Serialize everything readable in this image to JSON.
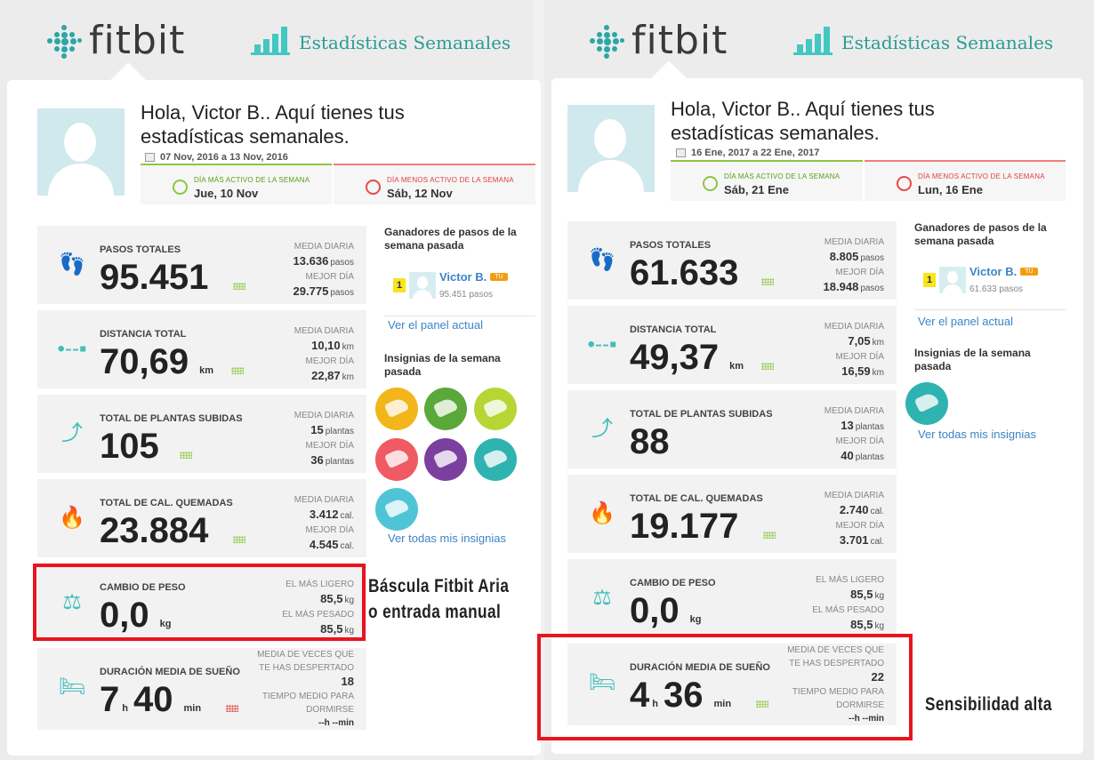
{
  "logo": "fitbit",
  "weekly_stats_title": "Estadísticas Semanales",
  "colors": {
    "teal": "#42c7c2",
    "link": "#3b84c6",
    "highlight": "#e8141e",
    "good": "#8dc63f",
    "bad": "#e04040"
  },
  "left": {
    "greeting": "Hola, Victor B.. Aquí tienes tus estadísticas semanales.",
    "date_range": "07 Nov, 2016 a 13 Nov, 2016",
    "most_active": {
      "label": "DÍA MÁS ACTIVO DE LA SEMANA",
      "value": "Jue, 10 Nov"
    },
    "least_active": {
      "label": "DÍA MENOS ACTIVO DE LA SEMANA",
      "value": "Sáb, 12 Nov"
    },
    "steps": {
      "title": "PASOS TOTALES",
      "value": "95.451",
      "avg_label": "MEDIA DIARIA",
      "avg": "13.636",
      "avg_unit": "pasos",
      "best_label": "MEJOR DÍA",
      "best": "29.775",
      "best_unit": "pasos"
    },
    "distance": {
      "title": "DISTANCIA TOTAL",
      "value": "70,69",
      "unit": "km",
      "avg_label": "MEDIA DIARIA",
      "avg": "10,10",
      "avg_unit": "km",
      "best_label": "MEJOR DÍA",
      "best": "22,87",
      "best_unit": "km"
    },
    "floors": {
      "title": "TOTAL DE PLANTAS SUBIDAS",
      "value": "105",
      "avg_label": "MEDIA DIARIA",
      "avg": "15",
      "avg_unit": "plantas",
      "best_label": "MEJOR DÍA",
      "best": "36",
      "best_unit": "plantas"
    },
    "calories": {
      "title": "TOTAL DE CAL. QUEMADAS",
      "value": "23.884",
      "avg_label": "MEDIA DIARIA",
      "avg": "3.412",
      "avg_unit": "cal.",
      "best_label": "MEJOR DÍA",
      "best": "4.545",
      "best_unit": "cal."
    },
    "weight": {
      "title": "CAMBIO DE PESO",
      "value": "0,0",
      "unit": "kg",
      "light_label": "EL MÁS LIGERO",
      "light": "85,5",
      "light_unit": "kg",
      "heavy_label": "EL MÁS PESADO",
      "heavy": "85,5",
      "heavy_unit": "kg"
    },
    "sleep": {
      "title": "DURACIÓN MEDIA DE SUEÑO",
      "hours": "7",
      "h": "h",
      "minutes": "40",
      "min": "min",
      "awake_label_1": "MEDIA DE VECES QUE",
      "awake_label_2": "TE HAS DESPERTADO",
      "awake": "18",
      "fall_label_1": "TIEMPO MEDIO PARA",
      "fall_label_2": "DORMIRSE",
      "fall": "--h --min"
    },
    "winners_title": "Ganadores de pasos de la semana pasada",
    "winner": {
      "rank": "1",
      "name": "Victor B.",
      "tag": "TÚ",
      "steps": "95.451 pasos"
    },
    "panel_link": "Ver el panel actual",
    "badges_title": "Insignias de la semana pasada",
    "badges": [
      {
        "icon": "badge-icon",
        "color": "#f2b61a"
      },
      {
        "icon": "badge-icon",
        "color": "#8dc63f"
      },
      {
        "icon": "badge-icon",
        "color": "#b7d636"
      },
      {
        "icon": "badge-icon",
        "color": "#f05a63"
      },
      {
        "icon": "badge-icon",
        "color": "#7b3fa0"
      },
      {
        "icon": "badge-icon",
        "color": "#2fb3b0"
      },
      {
        "icon": "badge-icon",
        "color": "#4fc4d6"
      }
    ],
    "all_badges_link": "Ver todas mis insignias",
    "caption": "Báscula Fitbit Aria o entrada manual"
  },
  "right": {
    "greeting": "Hola, Victor B.. Aquí tienes tus estadísticas semanales.",
    "date_range": "16 Ene, 2017 a 22 Ene, 2017",
    "most_active": {
      "label": "DÍA MÁS ACTIVO DE LA SEMANA",
      "value": "Sáb, 21 Ene"
    },
    "least_active": {
      "label": "DÍA MENOS ACTIVO DE LA SEMANA",
      "value": "Lun, 16 Ene"
    },
    "steps": {
      "title": "PASOS TOTALES",
      "value": "61.633",
      "avg_label": "MEDIA DIARIA",
      "avg": "8.805",
      "avg_unit": "pasos",
      "best_label": "MEJOR DÍA",
      "best": "18.948",
      "best_unit": "pasos"
    },
    "distance": {
      "title": "DISTANCIA TOTAL",
      "value": "49,37",
      "unit": "km",
      "avg_label": "MEDIA DIARIA",
      "avg": "7,05",
      "avg_unit": "km",
      "best_label": "MEJOR DÍA",
      "best": "16,59",
      "best_unit": "km"
    },
    "floors": {
      "title": "TOTAL DE PLANTAS SUBIDAS",
      "value": "88",
      "avg_label": "MEDIA DIARIA",
      "avg": "13",
      "avg_unit": "plantas",
      "best_label": "MEJOR DÍA",
      "best": "40",
      "best_unit": "plantas"
    },
    "calories": {
      "title": "TOTAL DE CAL. QUEMADAS",
      "value": "19.177",
      "avg_label": "MEDIA DIARIA",
      "avg": "2.740",
      "avg_unit": "cal.",
      "best_label": "MEJOR DÍA",
      "best": "3.701",
      "best_unit": "cal."
    },
    "weight": {
      "title": "CAMBIO DE PESO",
      "value": "0,0",
      "unit": "kg",
      "light_label": "EL MÁS LIGERO",
      "light": "85,5",
      "light_unit": "kg",
      "heavy_label": "EL MÁS PESADO",
      "heavy": "85,5",
      "heavy_unit": "kg"
    },
    "sleep": {
      "title": "DURACIÓN MEDIA DE SUEÑO",
      "hours": "4",
      "h": "h",
      "minutes": "36",
      "min": "min",
      "awake_label_1": "MEDIA DE VECES QUE",
      "awake_label_2": "TE HAS DESPERTADO",
      "awake": "22",
      "fall_label_1": "TIEMPO MEDIO PARA",
      "fall_label_2": "DORMIRSE",
      "fall": "--h --min"
    },
    "winners_title": "Ganadores de pasos de la semana pasada",
    "winner": {
      "rank": "1",
      "name": "Victor B.",
      "tag": "TÚ",
      "steps": "61.633 pasos"
    },
    "panel_link": "Ver el panel actual",
    "badges_title": "Insignias de la semana pasada",
    "badges": [
      {
        "icon": "badge-icon",
        "color": "#2fb3b0"
      }
    ],
    "all_badges_link": "Ver todas mis insignias",
    "caption": "Sensibilidad alta"
  }
}
